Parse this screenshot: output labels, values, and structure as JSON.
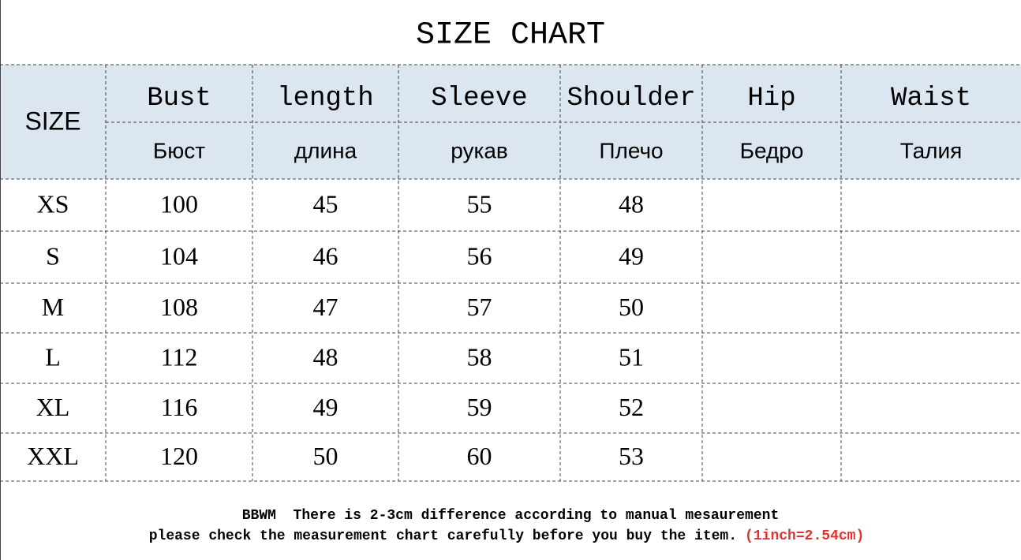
{
  "title": "SIZE CHART",
  "table": {
    "size_header": "SIZE",
    "columns": [
      {
        "en": "Bust",
        "ru": "Бюст"
      },
      {
        "en": "length",
        "ru": "длина"
      },
      {
        "en": "Sleeve",
        "ru": "рукав"
      },
      {
        "en": "Shoulder",
        "ru": "Плечо"
      },
      {
        "en": "Hip",
        "ru": "Бедро"
      },
      {
        "en": "Waist",
        "ru": "Талия"
      }
    ],
    "rows": [
      {
        "size": "XS",
        "values": [
          100,
          45,
          55,
          48
        ]
      },
      {
        "size": "S",
        "values": [
          104,
          46,
          56,
          49
        ]
      },
      {
        "size": "M",
        "values": [
          108,
          47,
          57,
          50
        ]
      },
      {
        "size": "L",
        "values": [
          112,
          48,
          58,
          51
        ]
      },
      {
        "size": "XL",
        "values": [
          116,
          49,
          59,
          52
        ]
      },
      {
        "size": "XXL",
        "values": [
          120,
          50,
          60,
          53
        ]
      }
    ]
  },
  "footer": {
    "line1": "BBWM  There is 2-3cm difference according to manual mesaurement",
    "line2": "please check the measurement chart carefully before you buy the item.",
    "note": "(1inch=2.54cm)"
  }
}
